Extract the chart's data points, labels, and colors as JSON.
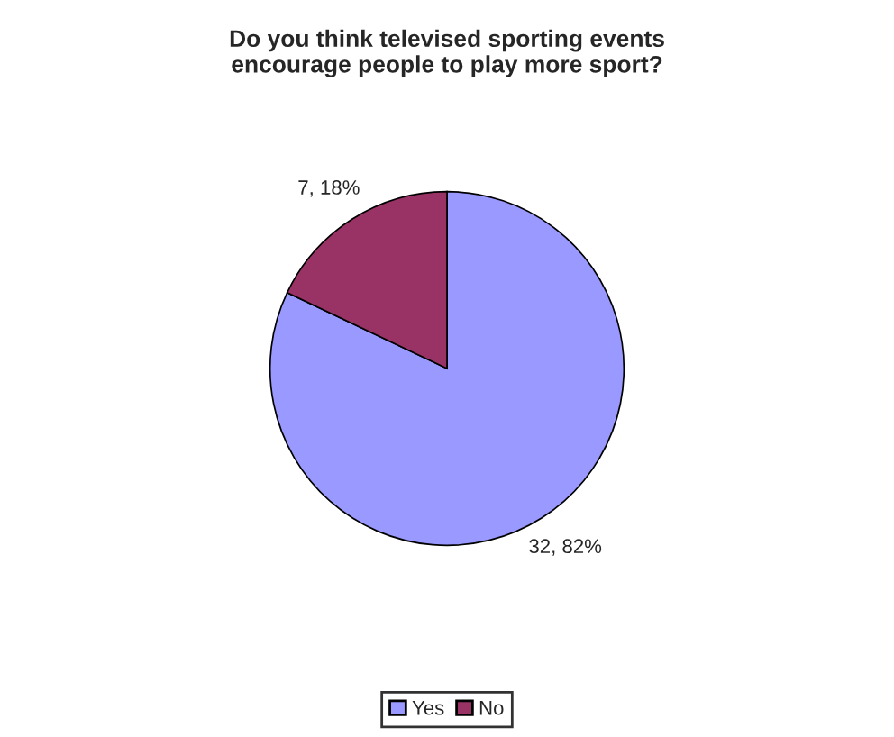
{
  "chart_data": {
    "type": "pie",
    "title": "Do you think televised sporting events\nencourage people to play more sport?",
    "categories": [
      "Yes",
      "No"
    ],
    "values": [
      32,
      7
    ],
    "colors": [
      "#9999ff",
      "#993366"
    ],
    "value_labels": [
      "32, 82%",
      "7, 18%"
    ],
    "legend": "bottom"
  }
}
